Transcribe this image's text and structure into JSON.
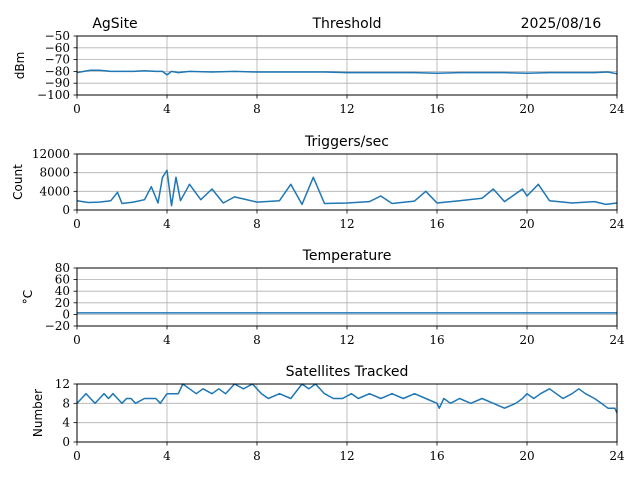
{
  "header": {
    "site": "AgSite",
    "date": "2025/08/16"
  },
  "colors": {
    "series": "#1f77b4",
    "grid": "#b0b0b0",
    "axis": "#000000"
  },
  "chart_data": [
    {
      "type": "line",
      "title": "Threshold",
      "xlabel": "",
      "ylabel": "dBm",
      "xlim": [
        0,
        24
      ],
      "ylim": [
        -100,
        -50
      ],
      "xticks": [
        0,
        4,
        8,
        12,
        16,
        20,
        24
      ],
      "yticks": [
        -100,
        -90,
        -80,
        -70,
        -60,
        -50
      ],
      "yticklabels": [
        "−100",
        "−90",
        "−80",
        "−70",
        "−60",
        "−50"
      ],
      "grid": true,
      "series": [
        {
          "values": [
            [
              0,
              -81
            ],
            [
              0.3,
              -80
            ],
            [
              0.6,
              -79
            ],
            [
              1,
              -79
            ],
            [
              1.5,
              -80
            ],
            [
              2,
              -80
            ],
            [
              2.5,
              -80
            ],
            [
              3,
              -79.5
            ],
            [
              3.5,
              -80
            ],
            [
              3.8,
              -80
            ],
            [
              4,
              -83
            ],
            [
              4.2,
              -80
            ],
            [
              4.5,
              -81
            ],
            [
              5,
              -80
            ],
            [
              6,
              -80.5
            ],
            [
              7,
              -80
            ],
            [
              8,
              -80.5
            ],
            [
              9,
              -80.5
            ],
            [
              10,
              -80.5
            ],
            [
              11,
              -80.5
            ],
            [
              12,
              -81
            ],
            [
              13,
              -81
            ],
            [
              14,
              -81
            ],
            [
              15,
              -81
            ],
            [
              16,
              -81.5
            ],
            [
              17,
              -81
            ],
            [
              18,
              -81
            ],
            [
              19,
              -81
            ],
            [
              20,
              -81.5
            ],
            [
              21,
              -81
            ],
            [
              22,
              -81
            ],
            [
              23,
              -81
            ],
            [
              23.6,
              -80.5
            ],
            [
              24,
              -82
            ]
          ]
        }
      ]
    },
    {
      "type": "line",
      "title": "Triggers/sec",
      "xlabel": "",
      "ylabel": "Count",
      "xlim": [
        0,
        24
      ],
      "ylim": [
        0,
        12000
      ],
      "xticks": [
        0,
        4,
        8,
        12,
        16,
        20,
        24
      ],
      "yticks": [
        0,
        4000,
        8000,
        12000
      ],
      "yticklabels": [
        "0",
        "4000",
        "8000",
        "12000"
      ],
      "grid": true,
      "series": [
        {
          "values": [
            [
              0,
              2000
            ],
            [
              0.5,
              1600
            ],
            [
              1,
              1700
            ],
            [
              1.5,
              2000
            ],
            [
              1.8,
              3800
            ],
            [
              2,
              1400
            ],
            [
              2.5,
              1700
            ],
            [
              3,
              2200
            ],
            [
              3.3,
              5000
            ],
            [
              3.6,
              1500
            ],
            [
              3.8,
              7000
            ],
            [
              4,
              8500
            ],
            [
              4.2,
              900
            ],
            [
              4.4,
              7000
            ],
            [
              4.6,
              2000
            ],
            [
              5,
              5500
            ],
            [
              5.5,
              2200
            ],
            [
              6,
              4500
            ],
            [
              6.5,
              1500
            ],
            [
              7,
              2800
            ],
            [
              8,
              1700
            ],
            [
              9,
              2000
            ],
            [
              9.5,
              5500
            ],
            [
              10,
              1200
            ],
            [
              10.5,
              7000
            ],
            [
              11,
              1400
            ],
            [
              12,
              1500
            ],
            [
              13,
              1800
            ],
            [
              13.5,
              3000
            ],
            [
              14,
              1400
            ],
            [
              15,
              1900
            ],
            [
              15.5,
              4000
            ],
            [
              16,
              1500
            ],
            [
              17,
              2000
            ],
            [
              18,
              2500
            ],
            [
              18.5,
              4500
            ],
            [
              19,
              1800
            ],
            [
              19.8,
              4500
            ],
            [
              20,
              3000
            ],
            [
              20.5,
              5500
            ],
            [
              21,
              2000
            ],
            [
              22,
              1500
            ],
            [
              23,
              1800
            ],
            [
              23.5,
              1200
            ],
            [
              24,
              1500
            ]
          ]
        }
      ]
    },
    {
      "type": "line",
      "title": "Temperature",
      "xlabel": "",
      "ylabel": "°C",
      "xlim": [
        0,
        24
      ],
      "ylim": [
        -20,
        80
      ],
      "xticks": [
        0,
        4,
        8,
        12,
        16,
        20,
        24
      ],
      "yticks": [
        -20,
        0,
        20,
        40,
        60,
        80
      ],
      "yticklabels": [
        "−20",
        "0",
        "20",
        "40",
        "60",
        "80"
      ],
      "grid": true,
      "series": [
        {
          "values": [
            [
              0,
              2.5
            ],
            [
              24,
              2.5
            ]
          ]
        }
      ]
    },
    {
      "type": "line",
      "title": "Satellites Tracked",
      "xlabel": "",
      "ylabel": "Number",
      "xlim": [
        0,
        24
      ],
      "ylim": [
        0,
        12
      ],
      "xticks": [
        0,
        4,
        8,
        12,
        16,
        20,
        24
      ],
      "yticks": [
        0,
        4,
        8,
        12
      ],
      "yticklabels": [
        "0",
        "4",
        "8",
        "12"
      ],
      "grid": true,
      "series": [
        {
          "values": [
            [
              0,
              8
            ],
            [
              0.2,
              9
            ],
            [
              0.4,
              10
            ],
            [
              0.6,
              9
            ],
            [
              0.8,
              8
            ],
            [
              1,
              9
            ],
            [
              1.2,
              10
            ],
            [
              1.4,
              9
            ],
            [
              1.6,
              10
            ],
            [
              1.8,
              9
            ],
            [
              2,
              8
            ],
            [
              2.2,
              9
            ],
            [
              2.4,
              9
            ],
            [
              2.6,
              8
            ],
            [
              3,
              9
            ],
            [
              3.5,
              9
            ],
            [
              3.7,
              8
            ],
            [
              4,
              10
            ],
            [
              4.5,
              10
            ],
            [
              4.7,
              12
            ],
            [
              5,
              11
            ],
            [
              5.3,
              10
            ],
            [
              5.6,
              11
            ],
            [
              6,
              10
            ],
            [
              6.3,
              11
            ],
            [
              6.6,
              10
            ],
            [
              7,
              12
            ],
            [
              7.4,
              11
            ],
            [
              7.8,
              12
            ],
            [
              8.2,
              10
            ],
            [
              8.5,
              9
            ],
            [
              9,
              10
            ],
            [
              9.5,
              9
            ],
            [
              10,
              12
            ],
            [
              10.3,
              11
            ],
            [
              10.6,
              12
            ],
            [
              11,
              10
            ],
            [
              11.4,
              9
            ],
            [
              11.8,
              9
            ],
            [
              12.2,
              10
            ],
            [
              12.5,
              9
            ],
            [
              13,
              10
            ],
            [
              13.5,
              9
            ],
            [
              14,
              10
            ],
            [
              14.5,
              9
            ],
            [
              15,
              10
            ],
            [
              15.5,
              9
            ],
            [
              16,
              8
            ],
            [
              16.1,
              7
            ],
            [
              16.3,
              9
            ],
            [
              16.6,
              8
            ],
            [
              17,
              9
            ],
            [
              17.5,
              8
            ],
            [
              18,
              9
            ],
            [
              18.5,
              8
            ],
            [
              19,
              7
            ],
            [
              19.5,
              8
            ],
            [
              19.8,
              9
            ],
            [
              20,
              10
            ],
            [
              20.3,
              9
            ],
            [
              20.6,
              10
            ],
            [
              21,
              11
            ],
            [
              21.3,
              10
            ],
            [
              21.6,
              9
            ],
            [
              22,
              10
            ],
            [
              22.3,
              11
            ],
            [
              22.6,
              10
            ],
            [
              23,
              9
            ],
            [
              23.3,
              8
            ],
            [
              23.6,
              7
            ],
            [
              23.9,
              7
            ],
            [
              24,
              6
            ]
          ]
        }
      ]
    }
  ]
}
